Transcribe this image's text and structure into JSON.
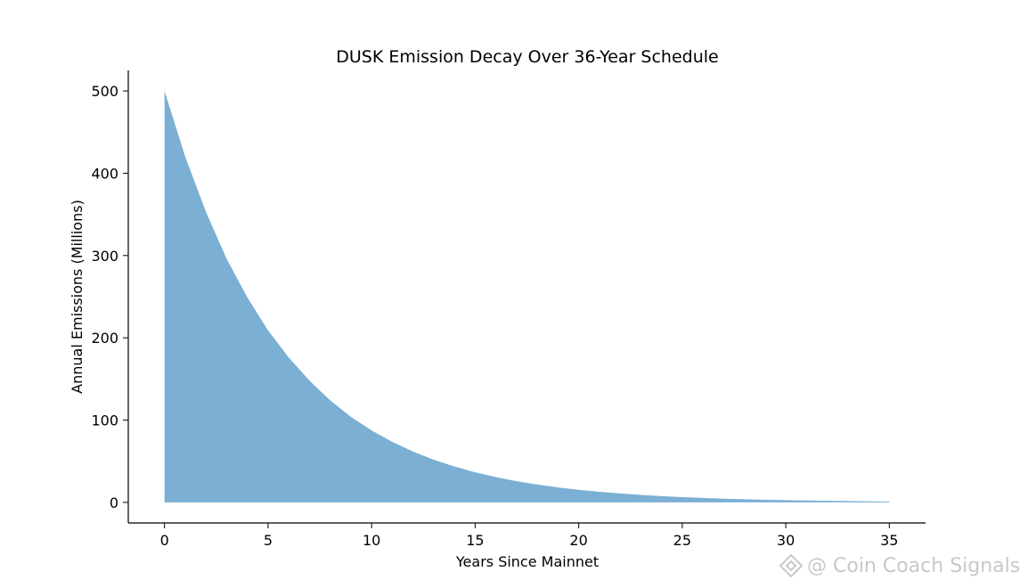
{
  "chart_data": {
    "type": "area",
    "title": "DUSK Emission Decay Over 36-Year Schedule",
    "xlabel": "Years Since Mainnet",
    "ylabel": "Annual Emissions (Millions)",
    "x": [
      0,
      1,
      2,
      3,
      4,
      5,
      6,
      7,
      8,
      9,
      10,
      11,
      12,
      13,
      14,
      15,
      16,
      17,
      18,
      19,
      20,
      21,
      22,
      23,
      24,
      25,
      26,
      27,
      28,
      29,
      30,
      31,
      32,
      33,
      34,
      35
    ],
    "series": [
      {
        "values": [
          500,
          420,
          353,
          296,
          249,
          209,
          176,
          148,
          124,
          104,
          87.5,
          73.5,
          61.7,
          51.9,
          43.6,
          36.6,
          30.7,
          25.8,
          21.7,
          18.2,
          15.3,
          12.9,
          10.8,
          9.1,
          7.6,
          6.4,
          5.4,
          4.5,
          3.8,
          3.2,
          2.7,
          2.3,
          1.9,
          1.6,
          1.3,
          1.1
        ]
      }
    ],
    "fill_color": "#7bafd4",
    "xlim": [
      -1.75,
      36.75
    ],
    "ylim": [
      -25,
      525
    ],
    "xticks": [
      0,
      5,
      10,
      15,
      20,
      25,
      30,
      35
    ],
    "yticks": [
      0,
      100,
      200,
      300,
      400,
      500
    ],
    "grid": false
  },
  "watermark": {
    "text": "@ Coin Coach Signals"
  }
}
